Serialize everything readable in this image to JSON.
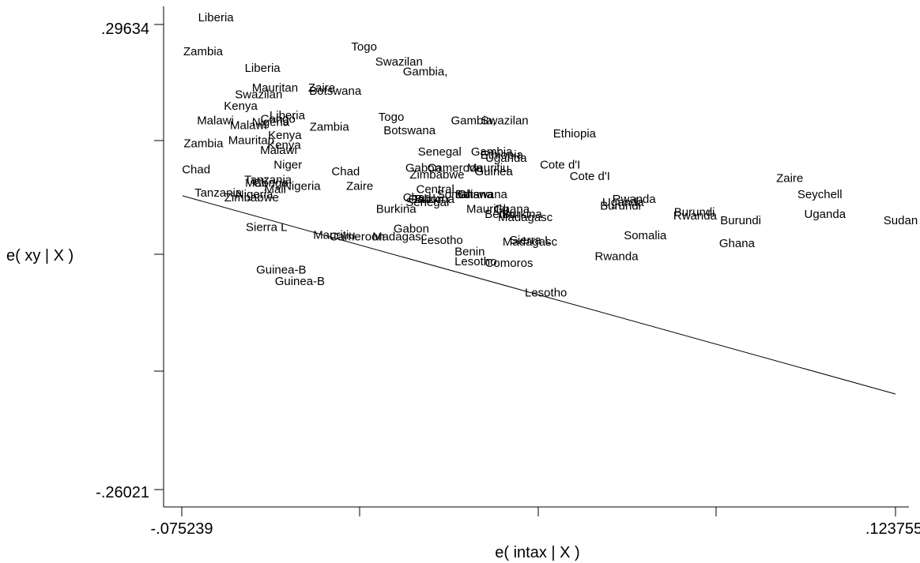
{
  "chart_data": {
    "type": "scatter",
    "title": "",
    "xlabel": "e( intax | X )",
    "ylabel": "e( xy | X )",
    "xlim": [
      -0.075239,
      0.123755
    ],
    "ylim": [
      -0.26021,
      0.29634
    ],
    "x_tick_labels": [
      ".075239",
      ".123755"
    ],
    "x_tick_labels_full": [
      "-.075239",
      ".123755"
    ],
    "y_tick_labels": [
      ".29634",
      "-.26021"
    ],
    "x_ticks": [
      -0.075239,
      -0.02549,
      0.024258,
      0.074007,
      0.123755
    ],
    "y_ticks": [
      0.29634,
      0.23977,
      0.1832,
      0.12664,
      0.07007,
      0.0135,
      -0.04307,
      -0.09964,
      -0.1562,
      -0.20277,
      -0.26021
    ],
    "fit_line": {
      "x": [
        -0.075239,
        0.123755
      ],
      "y": [
        0.1415,
        -0.0342
      ]
    },
    "points": [
      {
        "label": "Liberia",
        "x": -0.0707,
        "y": 0.2999
      },
      {
        "label": "Zambia",
        "x": -0.0748,
        "y": 0.25939
      },
      {
        "label": "Togo",
        "x": -0.028,
        "y": 0.26497
      },
      {
        "label": "Swazilan",
        "x": -0.0213,
        "y": 0.24734
      },
      {
        "label": "Liberia",
        "x": -0.0577,
        "y": 0.23943
      },
      {
        "label": "Gambia,",
        "x": -0.0136,
        "y": 0.23548
      },
      {
        "label": "Mauritan",
        "x": -0.0557,
        "y": 0.21588
      },
      {
        "label": "Zaire",
        "x": -0.04,
        "y": 0.21588
      },
      {
        "label": "Botswana",
        "x": -0.0397,
        "y": 0.21202
      },
      {
        "label": "Swazilan",
        "x": -0.0604,
        "y": 0.20812
      },
      {
        "label": "Kenya",
        "x": -0.0635,
        "y": 0.19452
      },
      {
        "label": "Liberia",
        "x": -0.0508,
        "y": 0.1828
      },
      {
        "label": "Congo",
        "x": -0.0533,
        "y": 0.17886
      },
      {
        "label": "Nigeria",
        "x": -0.0557,
        "y": 0.17494
      },
      {
        "label": "Malawi",
        "x": -0.071,
        "y": 0.17693
      },
      {
        "label": "Malawi",
        "x": -0.0618,
        "y": 0.17101
      },
      {
        "label": "Togo",
        "x": -0.0204,
        "y": 0.18089
      },
      {
        "label": "Gambia,",
        "x": -0.0002,
        "y": 0.17693
      },
      {
        "label": "Swazilan",
        "x": 0.0082,
        "y": 0.17693
      },
      {
        "label": "Zambia",
        "x": -0.0396,
        "y": 0.16907
      },
      {
        "label": "Botswana",
        "x": -0.019,
        "y": 0.16517
      },
      {
        "label": "Kenya",
        "x": -0.0512,
        "y": 0.1593
      },
      {
        "label": "Zambia",
        "x": -0.0747,
        "y": 0.14948
      },
      {
        "label": "Mauritan",
        "x": -0.0623,
        "y": 0.1534
      },
      {
        "label": "Kenya",
        "x": -0.0514,
        "y": 0.14753
      },
      {
        "label": "Malawi",
        "x": -0.0534,
        "y": 0.14158
      },
      {
        "label": "Ethiopia",
        "x": 0.0283,
        "y": 0.16129
      },
      {
        "label": "Senegal",
        "x": -0.0094,
        "y": 0.13965
      },
      {
        "label": "Gambia,",
        "x": 0.0054,
        "y": 0.13965
      },
      {
        "label": "Ethiopia",
        "x": 0.008,
        "y": 0.13573
      },
      {
        "label": "Uganda",
        "x": 0.0094,
        "y": 0.13186
      },
      {
        "label": "Niger",
        "x": -0.0496,
        "y": 0.12387
      },
      {
        "label": "Gabon",
        "x": -0.0129,
        "y": 0.11996
      },
      {
        "label": "Cameroon",
        "x": -0.0068,
        "y": 0.11996
      },
      {
        "label": "Mauritiu",
        "x": 0.0043,
        "y": 0.11996
      },
      {
        "label": "Guinea",
        "x": 0.0064,
        "y": 0.11604
      },
      {
        "label": "Cote d'I",
        "x": 0.0246,
        "y": 0.12386
      },
      {
        "label": "Chad",
        "x": -0.0752,
        "y": 0.11799
      },
      {
        "label": "Chad",
        "x": -0.0335,
        "y": 0.11604
      },
      {
        "label": "Zimbabwe",
        "x": -0.0117,
        "y": 0.11208
      },
      {
        "label": "Cote d'I",
        "x": 0.0329,
        "y": 0.11013
      },
      {
        "label": "Tanzania",
        "x": -0.0578,
        "y": 0.10617
      },
      {
        "label": "Mali",
        "x": -0.0576,
        "y": 0.10229
      },
      {
        "label": "Congo",
        "x": -0.0553,
        "y": 0.10229
      },
      {
        "label": "Nigeria",
        "x": -0.047,
        "y": 0.09836
      },
      {
        "label": "Zaire",
        "x": -0.0294,
        "y": 0.09836
      },
      {
        "label": "Mali",
        "x": -0.0522,
        "y": 0.09447
      },
      {
        "label": "Central",
        "x": -0.0099,
        "y": 0.09447
      },
      {
        "label": "Tanzania",
        "x": -0.0717,
        "y": 0.09051
      },
      {
        "label": "Nigeria",
        "x": -0.0603,
        "y": 0.0886
      },
      {
        "label": "Somalia",
        "x": -0.0041,
        "y": 0.0886
      },
      {
        "label": "Botswana",
        "x": 0.001,
        "y": 0.0886
      },
      {
        "label": "Ghana",
        "x": 0.0016,
        "y": 0.0886
      },
      {
        "label": "Zimbabwe",
        "x": -0.0634,
        "y": 0.08468
      },
      {
        "label": "Chad",
        "x": -0.0136,
        "y": 0.08464
      },
      {
        "label": "Burkina",
        "x": -0.0104,
        "y": 0.0827
      },
      {
        "label": "Gabon",
        "x": -0.0121,
        "y": 0.0827
      },
      {
        "label": "Senegal",
        "x": -0.0128,
        "y": 0.0788
      },
      {
        "label": "Rwanda",
        "x": 0.0448,
        "y": 0.0827
      },
      {
        "label": "Uganda",
        "x": 0.042,
        "y": 0.0788
      },
      {
        "label": "Burundi",
        "x": 0.0414,
        "y": 0.07487
      },
      {
        "label": "Burkina",
        "x": -0.0211,
        "y": 0.07093
      },
      {
        "label": "Mauritiu",
        "x": 0.0041,
        "y": 0.07093
      },
      {
        "label": "Ghana",
        "x": 0.0118,
        "y": 0.07093
      },
      {
        "label": "Benin",
        "x": 0.0092,
        "y": 0.06506
      },
      {
        "label": "Burkina",
        "x": 0.014,
        "y": 0.06506
      },
      {
        "label": "Madagasc",
        "x": 0.0129,
        "y": 0.06107
      },
      {
        "label": "Burundi",
        "x": 0.062,
        "y": 0.06698
      },
      {
        "label": "Rwanda",
        "x": 0.0618,
        "y": 0.06307
      },
      {
        "label": "Uganda",
        "x": 0.0983,
        "y": 0.06503
      },
      {
        "label": "Zaire",
        "x": 0.0905,
        "y": 0.10806
      },
      {
        "label": "Seychell",
        "x": 0.0964,
        "y": 0.08868
      },
      {
        "label": "Burundi",
        "x": 0.0749,
        "y": 0.05725
      },
      {
        "label": "Sudan",
        "x": 0.1204,
        "y": 0.05725
      },
      {
        "label": "Sierra L",
        "x": -0.0574,
        "y": 0.04935
      },
      {
        "label": "Gabon",
        "x": -0.0162,
        "y": 0.04745
      },
      {
        "label": "Mauritiu",
        "x": -0.0386,
        "y": 0.03961
      },
      {
        "label": "Cameroon",
        "x": -0.0341,
        "y": 0.03768
      },
      {
        "label": "Madagasc",
        "x": -0.0221,
        "y": 0.03768
      },
      {
        "label": "Lesotho",
        "x": -0.0086,
        "y": 0.03374
      },
      {
        "label": "Somalia",
        "x": 0.048,
        "y": 0.03954
      },
      {
        "label": "Sierra L",
        "x": 0.0162,
        "y": 0.03374
      },
      {
        "label": "Madagasc",
        "x": 0.0142,
        "y": 0.03178
      },
      {
        "label": "Ghana",
        "x": 0.0746,
        "y": 0.02985
      },
      {
        "label": "Benin",
        "x": 0.0008,
        "y": 0.01994
      },
      {
        "label": "Rwanda",
        "x": 0.0399,
        "y": 0.01406
      },
      {
        "label": "Lesotho",
        "x": 0.0008,
        "y": 0.00822
      },
      {
        "label": "Comoros",
        "x": 0.0093,
        "y": 0.00617
      },
      {
        "label": "Guinea-B",
        "x": -0.0545,
        "y": -0.00168
      },
      {
        "label": "Guinea-B",
        "x": -0.0493,
        "y": -0.01541
      },
      {
        "label": "Lesotho",
        "x": 0.0204,
        "y": -0.02919
      }
    ]
  }
}
